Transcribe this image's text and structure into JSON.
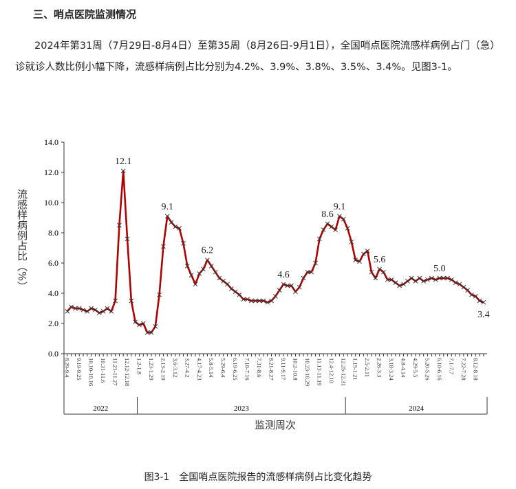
{
  "header": {
    "title": "三、哨点医院监测情况"
  },
  "paragraph": "2024年第31周（7月29日-8月4日）至第35周（8月26日-9月1日），全国哨点医院流感样病例占门（急）诊就诊人数比例小幅下降，流感样病例占比分别为4.2%、3.9%、3.8%、3.5%、3.4%。见图3-1。",
  "caption": "图3-1　全国哨点医院报告的流感样病例占比变化趋势",
  "chart_data": {
    "type": "line",
    "y_label": "流感样病例占比（%）",
    "x_label": "监测周次",
    "color": "#b00000",
    "marker_color": "#333333",
    "ylim": [
      0,
      14
    ],
    "yticks": [
      {
        "value": 0,
        "label": "0.0"
      },
      {
        "value": 2,
        "label": "2.0"
      },
      {
        "value": 4,
        "label": "4.0"
      },
      {
        "value": 6,
        "label": "6.0"
      },
      {
        "value": 8,
        "label": "8.0"
      },
      {
        "value": 10,
        "label": "10.0"
      },
      {
        "value": 12,
        "label": "12.0"
      },
      {
        "value": 14,
        "label": "14.0"
      }
    ],
    "year_groups": [
      {
        "name": "2022",
        "weeks": 18
      },
      {
        "name": "2023",
        "weeks": 52
      },
      {
        "name": "2024",
        "weeks": 35
      }
    ],
    "categories": [
      "8.29-9.4",
      null,
      null,
      "9.19-9.25",
      null,
      null,
      "10.10-10.16",
      null,
      null,
      "10.31-11.6",
      null,
      null,
      "11.21-11.27",
      null,
      null,
      "12.12-12.18",
      null,
      null,
      "1.2-1.8",
      null,
      null,
      "1.23-1.29",
      null,
      null,
      "2.13-2.19",
      null,
      null,
      "3.6-3.12",
      null,
      null,
      "3.27-4.2",
      null,
      null,
      "4.17-4.23",
      null,
      null,
      "5.8-5.14",
      null,
      null,
      "5.29-6.4",
      null,
      null,
      "6.19-6.25",
      null,
      null,
      "7.10-7.16",
      null,
      null,
      "7.31-8.6",
      null,
      null,
      "8.21-8.27",
      null,
      null,
      "9.11-9.17",
      null,
      null,
      "10.2-10.8",
      null,
      null,
      "10.23-10.29",
      null,
      null,
      "11.13-11.19",
      null,
      null,
      "12.4-12.10",
      null,
      null,
      "12.25-12.31",
      null,
      null,
      "1.15-1.21",
      null,
      null,
      "2.5-2.11",
      null,
      null,
      "2.26-3.3",
      null,
      null,
      "3.18-3.24",
      null,
      null,
      "4.8-4.14",
      null,
      null,
      "4.29-5.5",
      null,
      null,
      "5.20-5.26",
      null,
      null,
      "6.10-6.16",
      null,
      null,
      "7.1-7.7",
      null,
      null,
      "7.22-7.28",
      null,
      null,
      "8.12-8.18",
      null,
      null
    ],
    "values": [
      2.8,
      3.1,
      3.0,
      3.0,
      2.9,
      2.8,
      3.0,
      2.9,
      2.7,
      2.8,
      3.0,
      2.8,
      3.5,
      8.5,
      12.1,
      7.6,
      3.5,
      2.1,
      1.9,
      2.0,
      1.4,
      1.4,
      1.8,
      3.9,
      7.1,
      9.1,
      8.7,
      8.4,
      8.3,
      7.3,
      5.8,
      5.2,
      4.6,
      5.3,
      5.6,
      6.2,
      5.8,
      5.4,
      5.0,
      4.8,
      4.6,
      4.3,
      4.1,
      3.9,
      3.6,
      3.6,
      3.5,
      3.5,
      3.5,
      3.5,
      3.4,
      3.5,
      3.8,
      4.2,
      4.6,
      4.5,
      4.5,
      4.1,
      4.4,
      5.0,
      5.4,
      5.4,
      6.0,
      7.6,
      8.2,
      8.6,
      8.4,
      8.2,
      9.1,
      8.9,
      8.3,
      7.4,
      6.2,
      6.1,
      6.6,
      6.8,
      5.4,
      5.0,
      5.6,
      5.4,
      4.9,
      4.9,
      4.7,
      4.5,
      4.6,
      4.8,
      5.0,
      4.8,
      5.0,
      4.8,
      4.9,
      5.0,
      4.9,
      5.0,
      5.0,
      5.0,
      4.9,
      4.7,
      4.6,
      4.4,
      4.2,
      3.9,
      3.8,
      3.5,
      3.4
    ],
    "value_labels": [
      null,
      null,
      null,
      null,
      null,
      null,
      null,
      null,
      null,
      null,
      null,
      null,
      null,
      null,
      "12.1",
      null,
      null,
      null,
      null,
      null,
      null,
      null,
      null,
      null,
      null,
      "9.1",
      null,
      null,
      null,
      null,
      null,
      null,
      null,
      null,
      null,
      "6.2",
      null,
      null,
      null,
      null,
      null,
      null,
      null,
      null,
      null,
      null,
      null,
      null,
      null,
      null,
      null,
      null,
      null,
      null,
      "4.6",
      null,
      null,
      null,
      null,
      null,
      null,
      null,
      null,
      null,
      null,
      "8.6",
      null,
      null,
      "9.1",
      null,
      null,
      null,
      null,
      null,
      null,
      null,
      null,
      null,
      "5.6",
      null,
      null,
      null,
      null,
      null,
      null,
      null,
      null,
      null,
      null,
      null,
      null,
      null,
      null,
      "5.0",
      null,
      null,
      null,
      null,
      null,
      null,
      null,
      null,
      null,
      null,
      "3.4"
    ]
  }
}
